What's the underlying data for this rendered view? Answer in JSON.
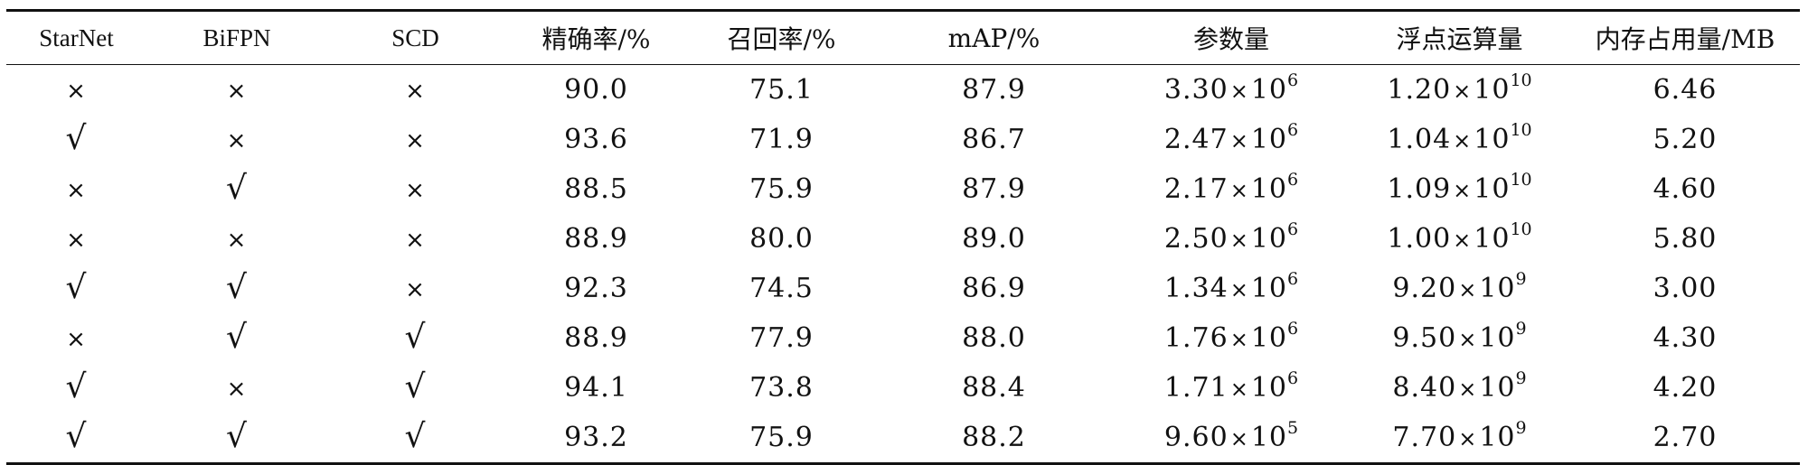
{
  "table": {
    "headers": [
      "StarNet",
      "BiFPN",
      "SCD",
      "精确率/%",
      "召回率/%",
      "mAP/%",
      "参数量",
      "浮点运算量",
      "内存占用量/MB"
    ],
    "symbols": {
      "check": "√",
      "cross": "×"
    },
    "rows": [
      {
        "starnet": "cross",
        "bifpn": "cross",
        "scd": "cross",
        "precision": "90.0",
        "recall": "75.1",
        "map": "87.9",
        "params": {
          "mantissa": "3.30",
          "base": "10",
          "exp": "6"
        },
        "flops": {
          "mantissa": "1.20",
          "base": "10",
          "exp": "10"
        },
        "memory": "6.46"
      },
      {
        "starnet": "check",
        "bifpn": "cross",
        "scd": "cross",
        "precision": "93.6",
        "recall": "71.9",
        "map": "86.7",
        "params": {
          "mantissa": "2.47",
          "base": "10",
          "exp": "6"
        },
        "flops": {
          "mantissa": "1.04",
          "base": "10",
          "exp": "10"
        },
        "memory": "5.20"
      },
      {
        "starnet": "cross",
        "bifpn": "check",
        "scd": "cross",
        "precision": "88.5",
        "recall": "75.9",
        "map": "87.9",
        "params": {
          "mantissa": "2.17",
          "base": "10",
          "exp": "6"
        },
        "flops": {
          "mantissa": "1.09",
          "base": "10",
          "exp": "10"
        },
        "memory": "4.60"
      },
      {
        "starnet": "cross",
        "bifpn": "cross",
        "scd": "cross",
        "precision": "88.9",
        "recall": "80.0",
        "map": "89.0",
        "params": {
          "mantissa": "2.50",
          "base": "10",
          "exp": "6"
        },
        "flops": {
          "mantissa": "1.00",
          "base": "10",
          "exp": "10"
        },
        "memory": "5.80"
      },
      {
        "starnet": "check",
        "bifpn": "check",
        "scd": "cross",
        "precision": "92.3",
        "recall": "74.5",
        "map": "86.9",
        "params": {
          "mantissa": "1.34",
          "base": "10",
          "exp": "6"
        },
        "flops": {
          "mantissa": "9.20",
          "base": "10",
          "exp": "9"
        },
        "memory": "3.00"
      },
      {
        "starnet": "cross",
        "bifpn": "check",
        "scd": "check",
        "precision": "88.9",
        "recall": "77.9",
        "map": "88.0",
        "params": {
          "mantissa": "1.76",
          "base": "10",
          "exp": "6"
        },
        "flops": {
          "mantissa": "9.50",
          "base": "10",
          "exp": "9"
        },
        "memory": "4.30"
      },
      {
        "starnet": "check",
        "bifpn": "cross",
        "scd": "check",
        "precision": "94.1",
        "recall": "73.8",
        "map": "88.4",
        "params": {
          "mantissa": "1.71",
          "base": "10",
          "exp": "6"
        },
        "flops": {
          "mantissa": "8.40",
          "base": "10",
          "exp": "9"
        },
        "memory": "4.20"
      },
      {
        "starnet": "check",
        "bifpn": "check",
        "scd": "check",
        "precision": "93.2",
        "recall": "75.9",
        "map": "88.2",
        "params": {
          "mantissa": "9.60",
          "base": "10",
          "exp": "5"
        },
        "flops": {
          "mantissa": "7.70",
          "base": "10",
          "exp": "9"
        },
        "memory": "2.70"
      }
    ]
  }
}
